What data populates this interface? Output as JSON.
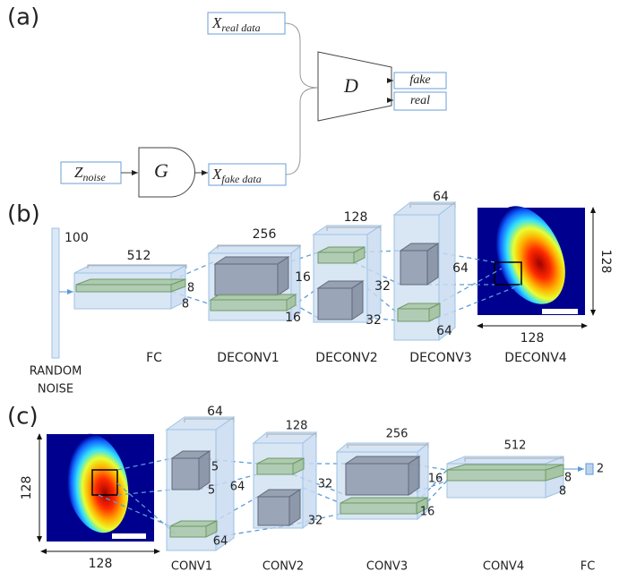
{
  "panel_a": {
    "label": "(a)",
    "x_real": {
      "symbol": "X",
      "subscript": "real data"
    },
    "x_fake": {
      "symbol": "X",
      "subscript": "fake data"
    },
    "z_noise": {
      "symbol": "Z",
      "subscript": "noise"
    },
    "generator": "G",
    "discriminator": "D",
    "outputs": [
      "fake",
      "real"
    ]
  },
  "panel_b": {
    "label": "(b)",
    "noise": {
      "size": "100",
      "caption": [
        "RANDOM",
        "NOISE"
      ]
    },
    "layers": [
      {
        "name": "FC",
        "dims": [
          "512",
          "8",
          "8"
        ]
      },
      {
        "name": "DECONV1",
        "dims": [
          "256",
          "16",
          "16"
        ]
      },
      {
        "name": "DECONV2",
        "dims": [
          "128",
          "32",
          "32"
        ]
      },
      {
        "name": "DECONV3",
        "dims": [
          "64",
          "64",
          "64"
        ]
      },
      {
        "name": "DECONV4",
        "dims": [
          "128",
          "128"
        ]
      }
    ]
  },
  "panel_c": {
    "label": "(c)",
    "input_dims": [
      "128",
      "128"
    ],
    "layers": [
      {
        "name": "CONV1",
        "dims": [
          "64",
          "5",
          "5",
          "64",
          "64"
        ]
      },
      {
        "name": "CONV2",
        "dims": [
          "128",
          "32",
          "32"
        ]
      },
      {
        "name": "CONV3",
        "dims": [
          "256",
          "16",
          "16"
        ]
      },
      {
        "name": "CONV4",
        "dims": [
          "512",
          "8",
          "8"
        ]
      },
      {
        "name": "FC",
        "dims": [
          "2"
        ]
      }
    ]
  }
}
